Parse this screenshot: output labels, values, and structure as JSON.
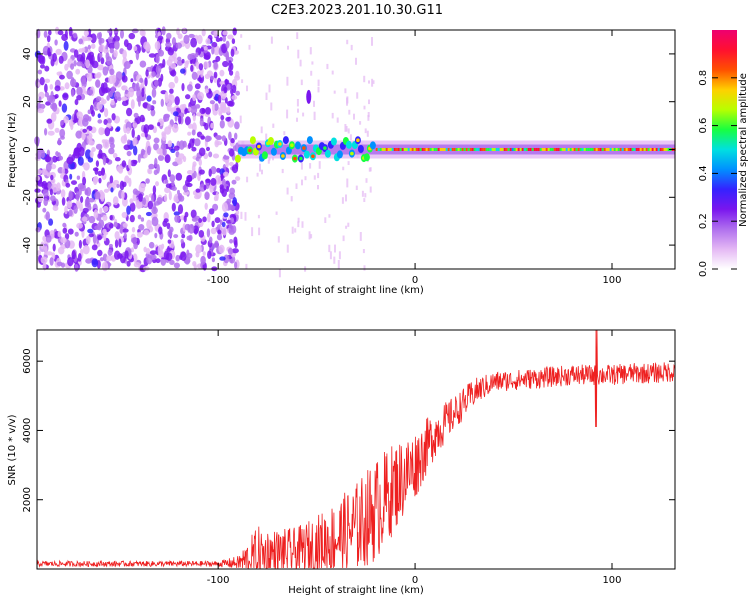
{
  "figure_title": "C2E3.2023.201.10.30.G11",
  "chart_data": [
    {
      "type": "heatmap",
      "title": "",
      "xlabel": "Height of straight line (km)",
      "ylabel": "Frequency (Hz)",
      "xlim": [
        -192,
        132
      ],
      "ylim": [
        -50,
        50
      ],
      "x_ticks": [
        -100,
        0,
        100
      ],
      "y_ticks": [
        -40,
        -20,
        0,
        20,
        40
      ],
      "colorbar": {
        "label": "Normalized spectral amplitude",
        "range": [
          0,
          1
        ],
        "ticks": [
          0.0,
          0.2,
          0.4,
          0.6,
          0.8
        ],
        "colormap": [
          "#ffffff",
          "#e4b8f4",
          "#b070ee",
          "#7a16ee",
          "#3522ff",
          "#0090ff",
          "#00e0e0",
          "#18ff40",
          "#b8ff00",
          "#ffd000",
          "#ff5000",
          "#ff1030",
          "#ee0070"
        ]
      },
      "features": {
        "noise_region_x": [
          -192,
          -90
        ],
        "carrier_start_x": -90,
        "carrier_freq_hz": 0,
        "carrier_wobble_hz": [
          -5,
          5
        ],
        "isolated_blob": {
          "x": -54,
          "y": 22
        }
      },
      "grid": false
    },
    {
      "type": "line",
      "title": "",
      "xlabel": "Height of straight line (km)",
      "ylabel": "SNR (10 * v/v)",
      "xlim": [
        -192,
        132
      ],
      "ylim": [
        0,
        6900
      ],
      "x_ticks": [
        -100,
        0,
        100
      ],
      "y_ticks": [
        2000,
        4000,
        6000
      ],
      "series": [
        {
          "color": "#ee2020",
          "envelope_x": [
            -192,
            -100,
            -90,
            -80,
            -70,
            -60,
            -50,
            -40,
            -30,
            -20,
            -10,
            0,
            10,
            20,
            30,
            40,
            50,
            60,
            70,
            80,
            90,
            100,
            110,
            120,
            132
          ],
          "envelope_mean": [
            150,
            150,
            180,
            350,
            450,
            500,
            650,
            900,
            1200,
            1700,
            2400,
            3000,
            3900,
            4500,
            5100,
            5400,
            5450,
            5500,
            5550,
            5600,
            5600,
            5600,
            5650,
            5650,
            5700
          ],
          "envelope_spread": [
            80,
            80,
            200,
            900,
            700,
            700,
            900,
            1100,
            1300,
            1500,
            1300,
            1000,
            700,
            500,
            400,
            300,
            300,
            300,
            300,
            300,
            300,
            300,
            300,
            300,
            300
          ],
          "spike": {
            "x": 92,
            "max": 6900,
            "min": 4100
          }
        }
      ],
      "grid": false
    }
  ]
}
